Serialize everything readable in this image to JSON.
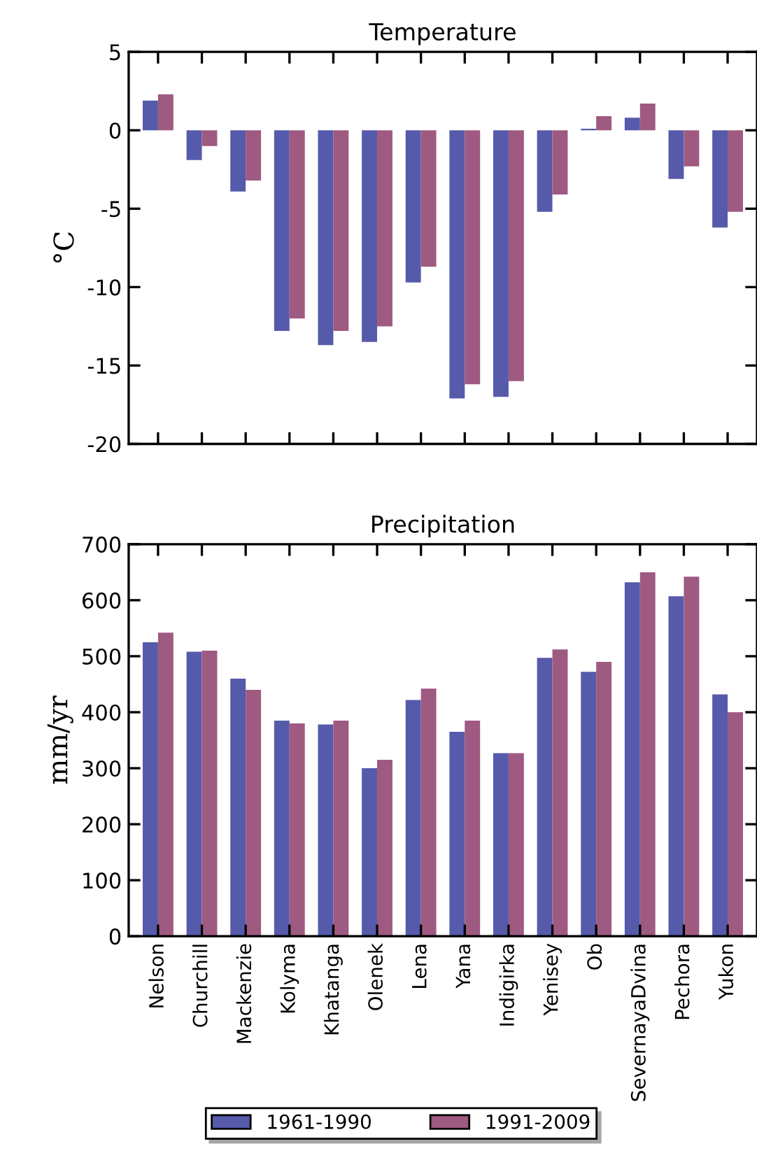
{
  "chart_data": [
    {
      "type": "bar",
      "title": "Temperature",
      "ylabel": "°C",
      "categories": [
        null,
        null,
        null,
        null,
        null,
        null,
        null,
        null,
        null,
        null,
        null,
        null,
        null,
        null
      ],
      "series": [
        {
          "color": "#565aab",
          "values": [
            1.9,
            -1.9,
            -3.9,
            -12.8,
            -13.7,
            -13.5,
            -9.7,
            -17.1,
            -17.0,
            -5.2,
            0.1,
            0.8,
            -3.1,
            -6.2
          ]
        },
        {
          "color": "#9f5a81",
          "values": [
            2.3,
            -1.0,
            -3.2,
            -12.0,
            -12.8,
            -12.5,
            -8.7,
            -16.2,
            -16.0,
            -4.1,
            0.9,
            1.7,
            -2.3,
            -5.2
          ]
        }
      ],
      "ylim": [
        -20,
        5
      ],
      "yticks": [
        -20,
        -15,
        -10,
        -5,
        0,
        5
      ],
      "tick_labels": "y",
      "grid": false
    },
    {
      "type": "bar",
      "title": "Precipitation",
      "ylabel": "mm/yr",
      "categories": [
        "Nelson",
        "Churchill",
        "Mackenzie",
        "Kolyma",
        "Khatanga",
        "Olenek",
        "Lena",
        "Yana",
        "Indigirka",
        "Yenisey",
        "Ob",
        "SevernayaDvina",
        "Pechora",
        "Yukon"
      ],
      "series": [
        {
          "name": "1961-1990",
          "color": "#565aab",
          "values": [
            525,
            508,
            460,
            385,
            378,
            300,
            422,
            365,
            327,
            497,
            472,
            632,
            607,
            432
          ]
        },
        {
          "name": "1991-2009",
          "color": "#9f5a81",
          "values": [
            542,
            510,
            440,
            380,
            385,
            315,
            442,
            385,
            327,
            512,
            490,
            650,
            642,
            400
          ]
        }
      ],
      "ylim": [
        0,
        700
      ],
      "yticks": [
        0,
        100,
        200,
        300,
        400,
        500,
        600,
        700
      ],
      "grid": false,
      "legend": "bottom"
    }
  ]
}
